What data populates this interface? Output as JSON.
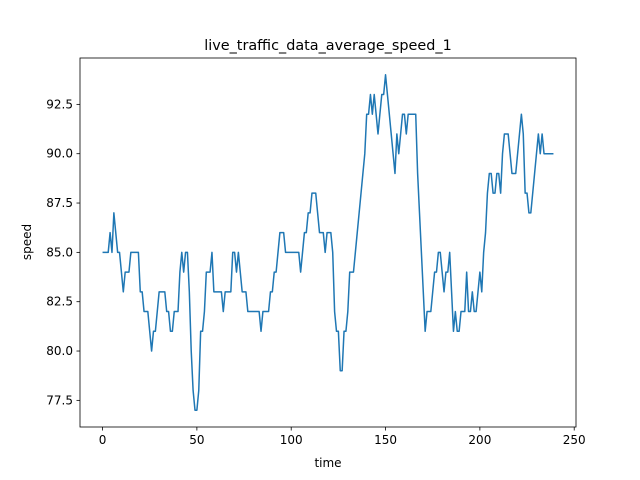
{
  "chart_data": {
    "type": "line",
    "title": "live_traffic_data_average_speed_1",
    "x_label": "time",
    "y_label": "speed",
    "x": [
      0,
      1,
      2,
      3,
      4,
      5,
      6,
      7,
      8,
      9,
      10,
      11,
      12,
      13,
      14,
      15,
      16,
      17,
      18,
      19,
      20,
      21,
      22,
      23,
      24,
      25,
      26,
      27,
      28,
      29,
      30,
      31,
      32,
      33,
      34,
      35,
      36,
      37,
      38,
      39,
      40,
      41,
      42,
      43,
      44,
      45,
      46,
      47,
      48,
      49,
      50,
      51,
      52,
      53,
      54,
      55,
      56,
      57,
      58,
      59,
      60,
      61,
      62,
      63,
      64,
      65,
      66,
      67,
      68,
      69,
      70,
      71,
      72,
      73,
      74,
      75,
      76,
      77,
      78,
      79,
      80,
      81,
      82,
      83,
      84,
      85,
      86,
      87,
      88,
      89,
      90,
      91,
      92,
      93,
      94,
      95,
      96,
      97,
      98,
      99,
      100,
      101,
      102,
      103,
      104,
      105,
      106,
      107,
      108,
      109,
      110,
      111,
      112,
      113,
      114,
      115,
      116,
      117,
      118,
      119,
      120,
      121,
      122,
      123,
      124,
      125,
      126,
      127,
      128,
      129,
      130,
      131,
      132,
      133,
      134,
      135,
      136,
      137,
      138,
      139,
      140,
      141,
      142,
      143,
      144,
      145,
      146,
      147,
      148,
      149,
      150,
      151,
      152,
      153,
      154,
      155,
      156,
      157,
      158,
      159,
      160,
      161,
      162,
      163,
      164,
      165,
      166,
      167,
      168,
      169,
      170,
      171,
      172,
      173,
      174,
      175,
      176,
      177,
      178,
      179,
      180,
      181,
      182,
      183,
      184,
      185,
      186,
      187,
      188,
      189,
      190,
      191,
      192,
      193,
      194,
      195,
      196,
      197,
      198,
      199,
      200,
      201,
      202,
      203,
      204,
      205,
      206,
      207,
      208,
      209,
      210,
      211,
      212,
      213,
      214,
      215,
      216,
      217,
      218,
      219,
      220,
      221,
      222,
      223,
      224,
      225,
      226,
      227,
      228,
      229,
      230,
      231,
      232,
      233,
      234,
      235,
      236,
      237,
      238,
      239
    ],
    "series": [
      {
        "color": "#1f77b4",
        "values": [
          85,
          85,
          85,
          85,
          86,
          85,
          87,
          86,
          85,
          85,
          84,
          83,
          84,
          84,
          84,
          85,
          85,
          85,
          85,
          85,
          83,
          83,
          82,
          82,
          82,
          81,
          80,
          81,
          81,
          82,
          83,
          83,
          83,
          83,
          82,
          82,
          81,
          81,
          82,
          82,
          82,
          84,
          85,
          84,
          85,
          85,
          83,
          80,
          78,
          77,
          77,
          78,
          81,
          81,
          82,
          84,
          84,
          84,
          85,
          83,
          83,
          83,
          83,
          83,
          82,
          83,
          83,
          83,
          83,
          85,
          85,
          84,
          85,
          84,
          83,
          83,
          83,
          82,
          82,
          82,
          82,
          82,
          82,
          82,
          81,
          82,
          82,
          82,
          82,
          83,
          83,
          84,
          84,
          85,
          86,
          86,
          86,
          85,
          85,
          85,
          85,
          85,
          85,
          85,
          85,
          84,
          85,
          86,
          86,
          87,
          87,
          88,
          88,
          88,
          87,
          86,
          86,
          86,
          85,
          86,
          86,
          86,
          85,
          82,
          81,
          81,
          79,
          79,
          81,
          81,
          82,
          84,
          84,
          84,
          85,
          86,
          87,
          88,
          89,
          90,
          92,
          92,
          93,
          92,
          93,
          92,
          91,
          92,
          93,
          93,
          94,
          93,
          92,
          91,
          90,
          89,
          91,
          90,
          91,
          92,
          92,
          91,
          92,
          92,
          92,
          92,
          92,
          89,
          87,
          85,
          83,
          81,
          82,
          82,
          82,
          83,
          84,
          84,
          85,
          85,
          84,
          83,
          84,
          84,
          85,
          83,
          81,
          82,
          81,
          81,
          82,
          82,
          82,
          84,
          82,
          82,
          83,
          82,
          82,
          83,
          84,
          83,
          85,
          86,
          88,
          89,
          89,
          88,
          88,
          89,
          89,
          88,
          90,
          91,
          91,
          91,
          90,
          89,
          89,
          89,
          90,
          91,
          92,
          91,
          88,
          88,
          87,
          87,
          88,
          89,
          90,
          91,
          90,
          91,
          90,
          90,
          90,
          90,
          90,
          90
        ]
      }
    ],
    "xlim": [
      -11.95,
      250.95
    ],
    "ylim": [
      76.15,
      94.85
    ],
    "xticks": [
      0,
      50,
      100,
      150,
      200,
      250
    ],
    "yticks": [
      77.5,
      {
        "value": 80,
        "label": "80.0"
      },
      82.5,
      {
        "value": 85,
        "label": "85.0"
      },
      87.5,
      {
        "value": 90,
        "label": "90.0"
      },
      92.5
    ]
  }
}
